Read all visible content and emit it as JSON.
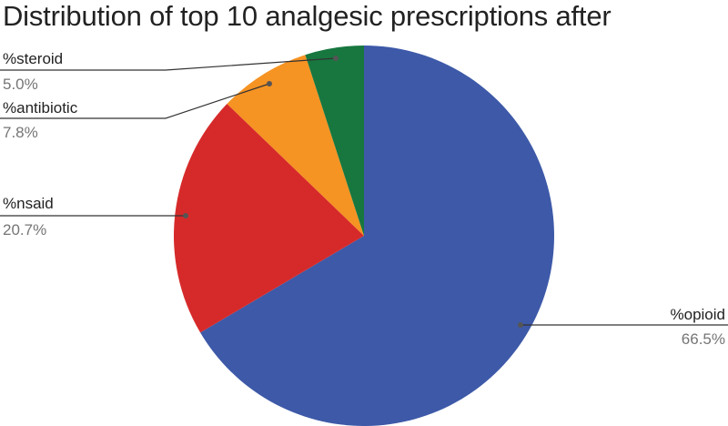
{
  "chart_data": {
    "type": "pie",
    "title": "Distribution of top 10 analgesic prescriptions after",
    "slices": [
      {
        "label": "%opioid",
        "value": 66.5,
        "value_label": "66.5%",
        "color": "#3d59a8"
      },
      {
        "label": "%nsaid",
        "value": 20.7,
        "value_label": "20.7%",
        "color": "#d62a2a"
      },
      {
        "label": "%antibiotic",
        "value": 7.8,
        "value_label": "7.8%",
        "color": "#f59323"
      },
      {
        "label": "%steroid",
        "value": 5.0,
        "value_label": "5.0%",
        "color": "#17773f"
      }
    ],
    "legend": "none",
    "labels": "outside with leader lines"
  }
}
